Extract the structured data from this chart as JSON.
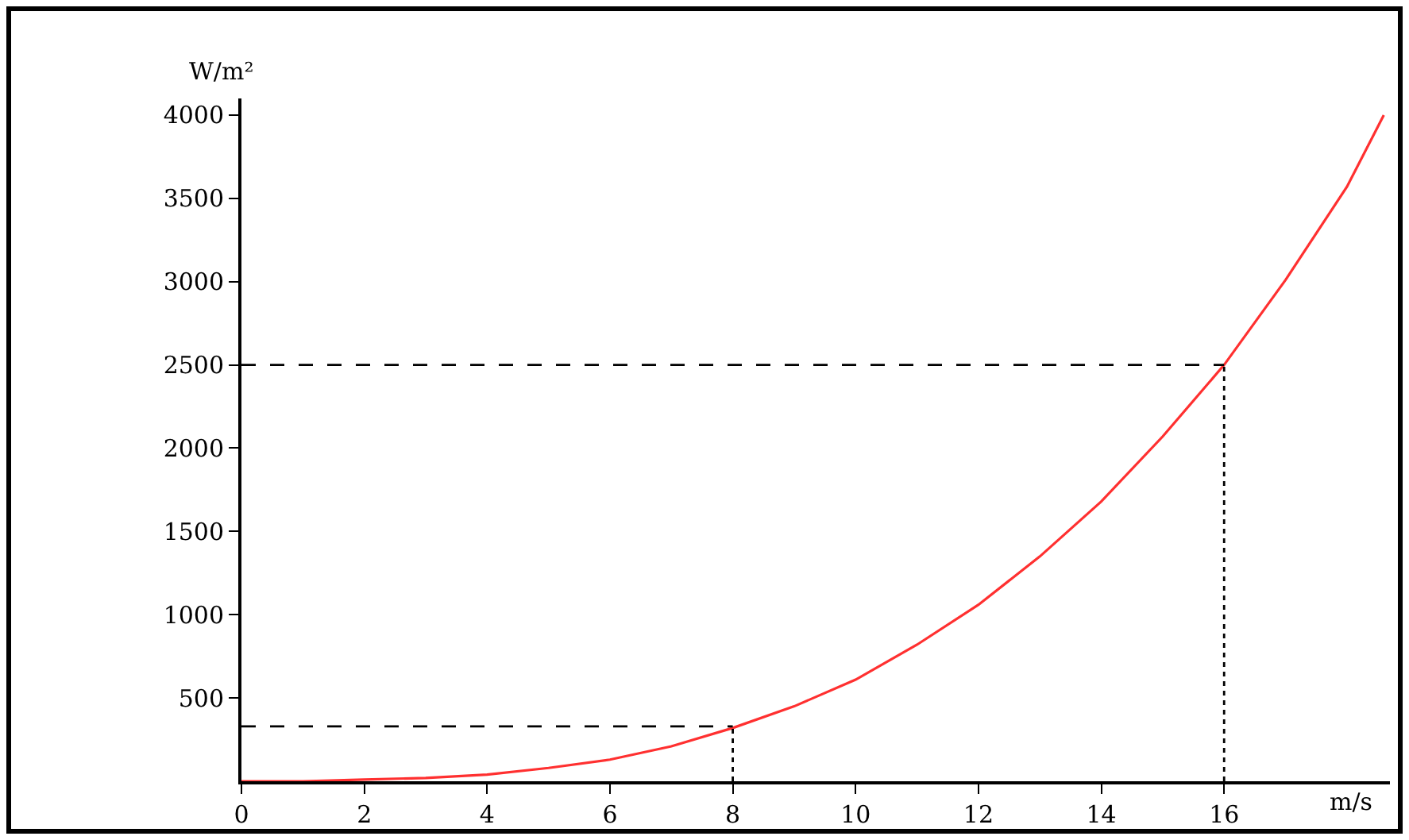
{
  "chart_data": {
    "type": "line",
    "xlabel": "m/s",
    "ylabel": "W/m²",
    "x": [
      0,
      1,
      2,
      3,
      4,
      5,
      6,
      7,
      8,
      9,
      10,
      11,
      12,
      13,
      14,
      15,
      16,
      17,
      18,
      18.6
    ],
    "series": [
      {
        "color": "#ff3030",
        "values": [
          0,
          0,
          10,
          20,
          40,
          80,
          130,
          210,
          320,
          450,
          610,
          820,
          1060,
          1350,
          1680,
          2070,
          2500,
          3010,
          3570,
          4000
        ]
      },
      {
        "color": "#000000",
        "line_style": "dashed",
        "x": [
          0,
          8
        ],
        "values": [
          330,
          330
        ]
      },
      {
        "color": "#000000",
        "line_style": "dashed",
        "x": [
          0,
          16
        ],
        "values": [
          2500,
          2500
        ]
      },
      {
        "color": "#000000",
        "line_style": "dotted",
        "x": [
          8,
          8
        ],
        "values": [
          0,
          330
        ]
      },
      {
        "color": "#000000",
        "line_style": "dotted",
        "x": [
          16,
          16
        ],
        "values": [
          0,
          2500
        ]
      }
    ],
    "xlim": [
      0,
      18.7
    ],
    "xticks": [
      0,
      2,
      4,
      6,
      8,
      10,
      12,
      14,
      16
    ],
    "ylim": [
      0,
      4100
    ],
    "yticks": [
      500,
      1000,
      1500,
      2000,
      2500,
      3000,
      3500,
      4000
    ],
    "grid": false,
    "marker": "none",
    "line_style": "solid"
  }
}
